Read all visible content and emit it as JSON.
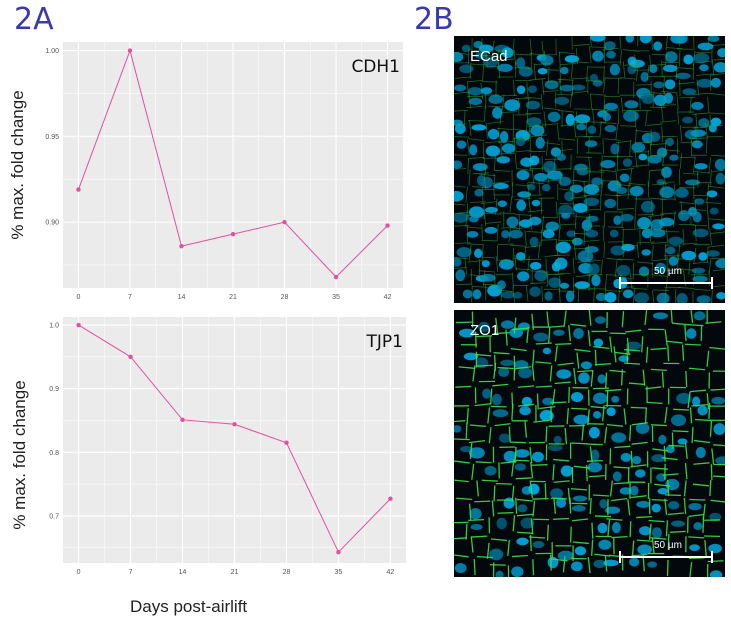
{
  "figure": {
    "label_a": "2A",
    "label_b": "2B",
    "xlabel": "Days post-airlift"
  },
  "chart_data": [
    {
      "type": "line",
      "title": "CDH1",
      "ylabel": "% max. fold change",
      "x": [
        0,
        7,
        14,
        21,
        28,
        35,
        42
      ],
      "values": [
        0.919,
        1.0,
        0.886,
        0.893,
        0.9,
        0.868,
        0.898
      ],
      "xticks": [
        "0",
        "7",
        "14",
        "21",
        "28",
        "35",
        "42"
      ],
      "yticks": [
        "0.90",
        "0.95",
        "1.00"
      ],
      "ytick_values": [
        0.9,
        0.95,
        1.0
      ],
      "xlim": [
        -2.1,
        44.1
      ],
      "ylim": [
        0.8616,
        1.005
      ],
      "grid": true,
      "color": "#e0529c"
    },
    {
      "type": "line",
      "title": "TJP1",
      "ylabel": "% max. fold change",
      "x": [
        0,
        7,
        14,
        21,
        28,
        35,
        42
      ],
      "values": [
        1.0,
        0.95,
        0.851,
        0.844,
        0.815,
        0.643,
        0.727
      ],
      "xticks": [
        "0",
        "7",
        "14",
        "21",
        "28",
        "35",
        "42"
      ],
      "yticks": [
        "0.7",
        "0.8",
        "0.9",
        "1.0"
      ],
      "ytick_values": [
        0.7,
        0.8,
        0.9,
        1.0
      ],
      "xlim": [
        -2.1,
        44.1
      ],
      "ylim": [
        0.626,
        1.0126
      ],
      "grid": true,
      "color": "#e0529c"
    }
  ],
  "images": [
    {
      "label": "ECad",
      "scale_label": "50 µm"
    },
    {
      "label": "ZO1",
      "scale_label": "50 µm"
    }
  ]
}
